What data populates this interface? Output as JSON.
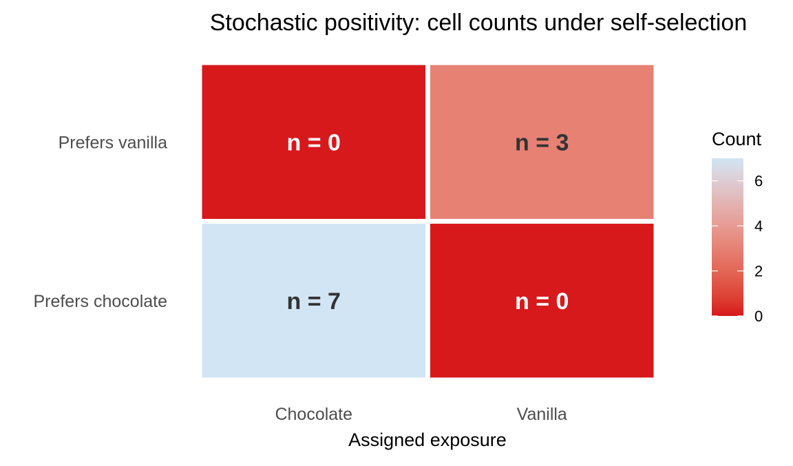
{
  "chart_data": {
    "type": "heatmap",
    "title": "Stochastic positivity: cell counts under self-selection",
    "xlabel": "Assigned exposure",
    "ylabel": "",
    "x_categories": [
      "Chocolate",
      "Vanilla"
    ],
    "y_categories": [
      "Prefers chocolate",
      "Prefers vanilla"
    ],
    "cells": [
      {
        "x": "Chocolate",
        "y": "Prefers vanilla",
        "value": 0,
        "label": "n = 0"
      },
      {
        "x": "Vanilla",
        "y": "Prefers vanilla",
        "value": 3,
        "label": "n = 3"
      },
      {
        "x": "Chocolate",
        "y": "Prefers chocolate",
        "value": 7,
        "label": "n = 7"
      },
      {
        "x": "Vanilla",
        "y": "Prefers chocolate",
        "value": 0,
        "label": "n = 0"
      }
    ],
    "legend": {
      "title": "Count",
      "ticks": [
        0,
        2,
        4,
        6
      ],
      "range": [
        0,
        7
      ],
      "position": "right",
      "low_color": "#D7191C",
      "high_color": "#D1E5F4"
    },
    "label_colors": {
      "dark_fill": "#FFFFFF",
      "light_fill": "#333333"
    },
    "grid": false
  }
}
